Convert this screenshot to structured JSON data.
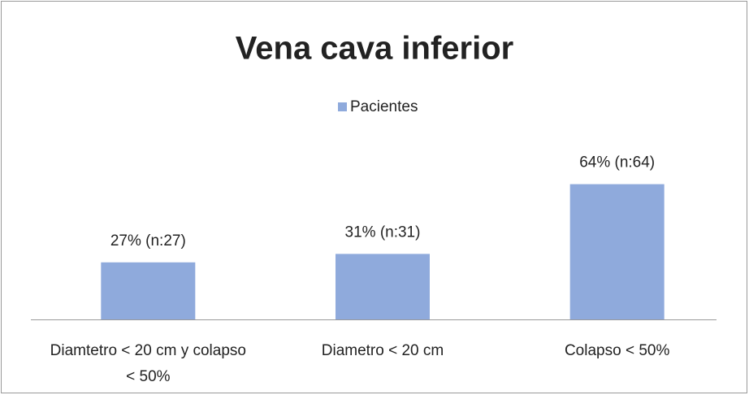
{
  "chart_data": {
    "type": "bar",
    "title": "Vena cava inferior",
    "categories": [
      "Diamtetro < 20 cm y colapso < 50%",
      "Diametro < 20 cm",
      "Colapso < 50%"
    ],
    "series": [
      {
        "name": "Pacientes",
        "color": "#8faadc",
        "values": [
          27,
          31,
          64
        ],
        "value_labels": [
          "27% (n:27)",
          "31% (n:31)",
          "64% (n:64)"
        ]
      }
    ],
    "ylim": [
      0,
      70
    ],
    "legend": "top"
  }
}
